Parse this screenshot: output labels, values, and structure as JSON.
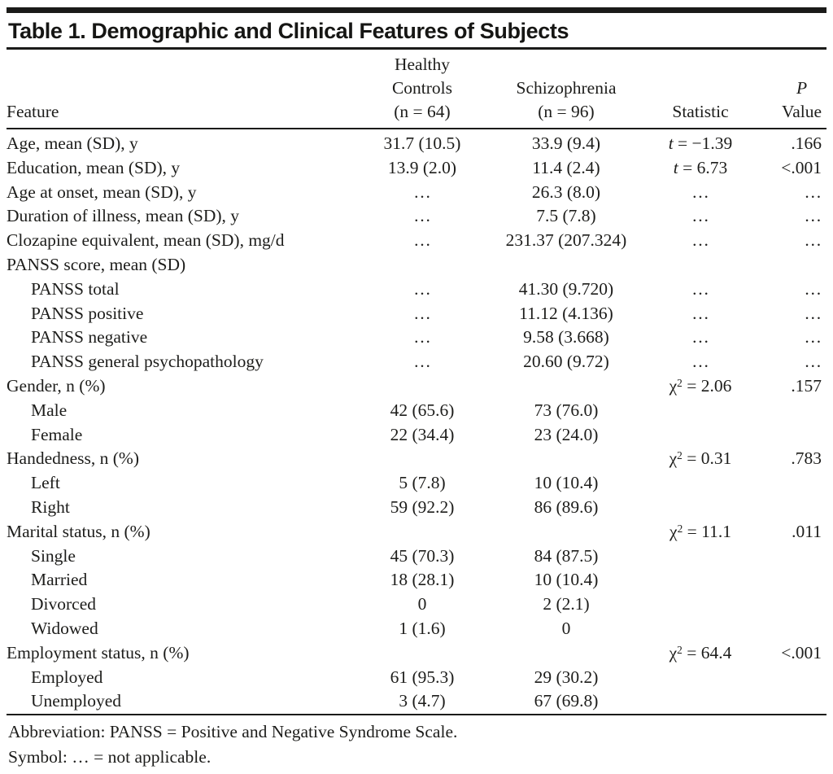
{
  "title": "Table 1. Demographic and Clinical Features of Subjects",
  "colors": {
    "rule": "#1b1b19",
    "text": "#1d1d1b",
    "background": "#ffffff"
  },
  "table": {
    "columns": {
      "feature": "Feature",
      "healthy_lines": [
        "Healthy",
        "Controls",
        "(n = 64)"
      ],
      "schizophrenia_lines": [
        "Schizophrenia",
        "(n = 96)"
      ],
      "statistic": "Statistic",
      "p_lines": [
        "P",
        "Value"
      ]
    },
    "rows": [
      {
        "feature": "Age, mean (SD), y",
        "indent": false,
        "healthy": "31.7 (10.5)",
        "schizophrenia": "33.9 (9.4)",
        "stat_symbol": "t",
        "stat_italic": true,
        "stat_sup": "",
        "stat_rest": " = −1.39",
        "p": ".166"
      },
      {
        "feature": "Education, mean (SD), y",
        "indent": false,
        "healthy": "13.9 (2.0)",
        "schizophrenia": "11.4 (2.4)",
        "stat_symbol": "t",
        "stat_italic": true,
        "stat_sup": "",
        "stat_rest": " = 6.73",
        "p": "<.001"
      },
      {
        "feature": "Age at onset, mean (SD), y",
        "indent": false,
        "healthy": "…",
        "schizophrenia": "26.3 (8.0)",
        "stat_symbol": "",
        "stat_italic": false,
        "stat_sup": "",
        "stat_rest": "…",
        "p": "…"
      },
      {
        "feature": "Duration of illness, mean (SD), y",
        "indent": false,
        "healthy": "…",
        "schizophrenia": "7.5 (7.8)",
        "stat_symbol": "",
        "stat_italic": false,
        "stat_sup": "",
        "stat_rest": "…",
        "p": "…"
      },
      {
        "feature": "Clozapine equivalent, mean (SD), mg/d",
        "indent": false,
        "healthy": "…",
        "schizophrenia": "231.37 (207.324)",
        "stat_symbol": "",
        "stat_italic": false,
        "stat_sup": "",
        "stat_rest": "…",
        "p": "…"
      },
      {
        "feature": "PANSS score, mean (SD)",
        "indent": false,
        "healthy": "",
        "schizophrenia": "",
        "stat_symbol": "",
        "stat_italic": false,
        "stat_sup": "",
        "stat_rest": "",
        "p": ""
      },
      {
        "feature": "PANSS total",
        "indent": true,
        "healthy": "…",
        "schizophrenia": "41.30 (9.720)",
        "stat_symbol": "",
        "stat_italic": false,
        "stat_sup": "",
        "stat_rest": "…",
        "p": "…"
      },
      {
        "feature": "PANSS positive",
        "indent": true,
        "healthy": "…",
        "schizophrenia": "11.12 (4.136)",
        "stat_symbol": "",
        "stat_italic": false,
        "stat_sup": "",
        "stat_rest": "…",
        "p": "…"
      },
      {
        "feature": "PANSS negative",
        "indent": true,
        "healthy": "…",
        "schizophrenia": "9.58 (3.668)",
        "stat_symbol": "",
        "stat_italic": false,
        "stat_sup": "",
        "stat_rest": "…",
        "p": "…"
      },
      {
        "feature": "PANSS general psychopathology",
        "indent": true,
        "healthy": "…",
        "schizophrenia": "20.60 (9.72)",
        "stat_symbol": "",
        "stat_italic": false,
        "stat_sup": "",
        "stat_rest": "…",
        "p": "…"
      },
      {
        "feature": "Gender, n (%)",
        "indent": false,
        "healthy": "",
        "schizophrenia": "",
        "stat_symbol": "χ",
        "stat_italic": false,
        "stat_sup": "2",
        "stat_rest": " = 2.06",
        "p": ".157"
      },
      {
        "feature": "Male",
        "indent": true,
        "healthy": "42 (65.6)",
        "schizophrenia": "73 (76.0)",
        "stat_symbol": "",
        "stat_italic": false,
        "stat_sup": "",
        "stat_rest": "",
        "p": ""
      },
      {
        "feature": "Female",
        "indent": true,
        "healthy": "22 (34.4)",
        "schizophrenia": "23 (24.0)",
        "stat_symbol": "",
        "stat_italic": false,
        "stat_sup": "",
        "stat_rest": "",
        "p": ""
      },
      {
        "feature": "Handedness, n (%)",
        "indent": false,
        "healthy": "",
        "schizophrenia": "",
        "stat_symbol": "χ",
        "stat_italic": false,
        "stat_sup": "2",
        "stat_rest": " = 0.31",
        "p": ".783"
      },
      {
        "feature": "Left",
        "indent": true,
        "healthy": "5 (7.8)",
        "schizophrenia": "10 (10.4)",
        "stat_symbol": "",
        "stat_italic": false,
        "stat_sup": "",
        "stat_rest": "",
        "p": ""
      },
      {
        "feature": "Right",
        "indent": true,
        "healthy": "59 (92.2)",
        "schizophrenia": "86 (89.6)",
        "stat_symbol": "",
        "stat_italic": false,
        "stat_sup": "",
        "stat_rest": "",
        "p": ""
      },
      {
        "feature": "Marital status, n (%)",
        "indent": false,
        "healthy": "",
        "schizophrenia": "",
        "stat_symbol": "χ",
        "stat_italic": false,
        "stat_sup": "2",
        "stat_rest": " = 11.1",
        "p": ".011"
      },
      {
        "feature": "Single",
        "indent": true,
        "healthy": "45 (70.3)",
        "schizophrenia": "84 (87.5)",
        "stat_symbol": "",
        "stat_italic": false,
        "stat_sup": "",
        "stat_rest": "",
        "p": ""
      },
      {
        "feature": "Married",
        "indent": true,
        "healthy": "18 (28.1)",
        "schizophrenia": "10 (10.4)",
        "stat_symbol": "",
        "stat_italic": false,
        "stat_sup": "",
        "stat_rest": "",
        "p": ""
      },
      {
        "feature": "Divorced",
        "indent": true,
        "healthy": "0",
        "schizophrenia": "2 (2.1)",
        "stat_symbol": "",
        "stat_italic": false,
        "stat_sup": "",
        "stat_rest": "",
        "p": ""
      },
      {
        "feature": "Widowed",
        "indent": true,
        "healthy": "1 (1.6)",
        "schizophrenia": "0",
        "stat_symbol": "",
        "stat_italic": false,
        "stat_sup": "",
        "stat_rest": "",
        "p": ""
      },
      {
        "feature": "Employment status, n (%)",
        "indent": false,
        "healthy": "",
        "schizophrenia": "",
        "stat_symbol": "χ",
        "stat_italic": false,
        "stat_sup": "2",
        "stat_rest": " = 64.4",
        "p": "<.001"
      },
      {
        "feature": "Employed",
        "indent": true,
        "healthy": "61 (95.3)",
        "schizophrenia": "29 (30.2)",
        "stat_symbol": "",
        "stat_italic": false,
        "stat_sup": "",
        "stat_rest": "",
        "p": ""
      },
      {
        "feature": "Unemployed",
        "indent": true,
        "healthy": "3 (4.7)",
        "schizophrenia": "67 (69.8)",
        "stat_symbol": "",
        "stat_italic": false,
        "stat_sup": "",
        "stat_rest": "",
        "p": ""
      }
    ]
  },
  "footnotes": {
    "abbreviation": "Abbreviation: PANSS = Positive and Negative Syndrome Scale.",
    "symbol": "Symbol: … = not applicable."
  }
}
